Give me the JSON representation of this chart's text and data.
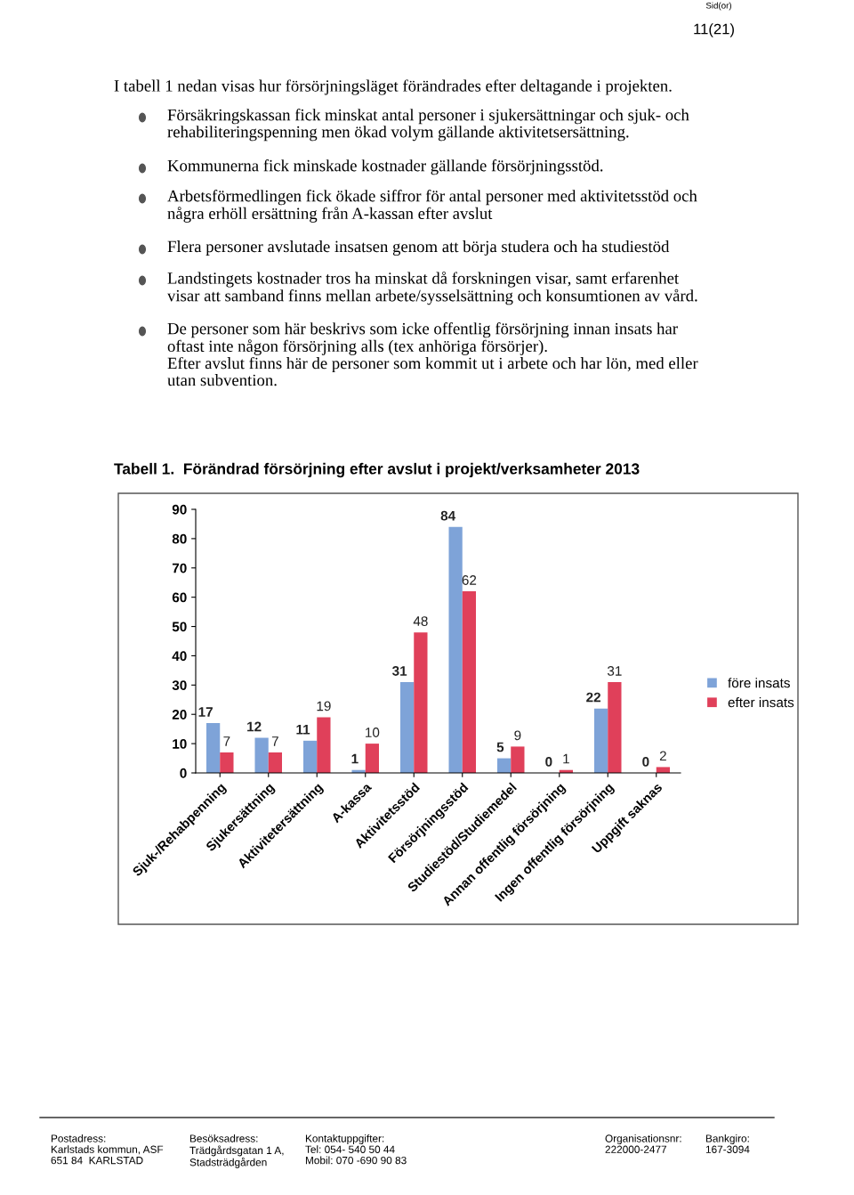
{
  "chart_data": {
    "type": "bar",
    "title": "Tabell 1.  Förändrad försörjning efter avslut i projekt/verksamheter 2013",
    "categories": [
      "Sjuk-/Rehabpenning",
      "Sjukersättning",
      "Aktivitetersättning",
      "A-kassa",
      "Aktivitetsstöd",
      "Försörjningsstöd",
      "Studiestöd/Studiemedel",
      "Annan offentlig försörjning",
      "Ingen offentlig försörjning",
      "Uppgift saknas"
    ],
    "series": [
      {
        "name": "före insats",
        "color": "#7ea3d8",
        "values": [
          17,
          12,
          11,
          1,
          31,
          84,
          5,
          0,
          22,
          0
        ]
      },
      {
        "name": "efter insats",
        "color": "#e0405a",
        "values": [
          7,
          7,
          19,
          10,
          48,
          62,
          9,
          1,
          31,
          2
        ]
      }
    ],
    "ylim": [
      0,
      90
    ],
    "yticks": [
      0,
      10,
      20,
      30,
      40,
      50,
      60,
      70,
      80,
      90
    ],
    "data_labels": true,
    "legend": "right",
    "grid": false,
    "annotations": [
      "Sid(or)",
      "11(21)",
      "I tabell 1 nedan visas hur försörjningsläget förändrades efter deltagande i projekten.",
      "Försäkringskassan fick minskat antal personer i sjukersättningar och sjuk- och\nrehabiliteringspenning men ökad volym gällande aktivitetsersättning.",
      "Kommunerna fick minskade kostnader gällande försörjningsstöd.",
      "Arbetsförmedlingen fick ökade siffror för antal personer med aktivitetsstöd och\nnågra erhöll ersättning från A-kassan efter avslut",
      "Flera personer avslutade insatsen genom att börja studera och ha studiestöd",
      "Landstingets kostnader tros ha minskat då forskningen visar, samt erfarenhet\nvisar att samband finns mellan arbete/sysselsättning och konsumtionen av vård.",
      "De personer som här beskrivs som icke offentlig försörjning innan insats har\noftast inte någon försörjning alls (tex anhöriga försörjer).\nEfter avslut finns här de personer som kommit ut i arbete och har lön, med eller\nutan subvention.",
      "Postadress:\nKarlstads kommun, ASF\n651 84  KARLSTAD",
      "Besöksadress:\nTrädgårdsgatan 1 A,\nStadsträdgården",
      "Kontaktuppgifter:\nTel: 054- 540 50 44\nMobil: 070 -690 90 83",
      "Organisationsnr:\n222000-2477",
      "Bankgiro:\n167-3094"
    ]
  }
}
